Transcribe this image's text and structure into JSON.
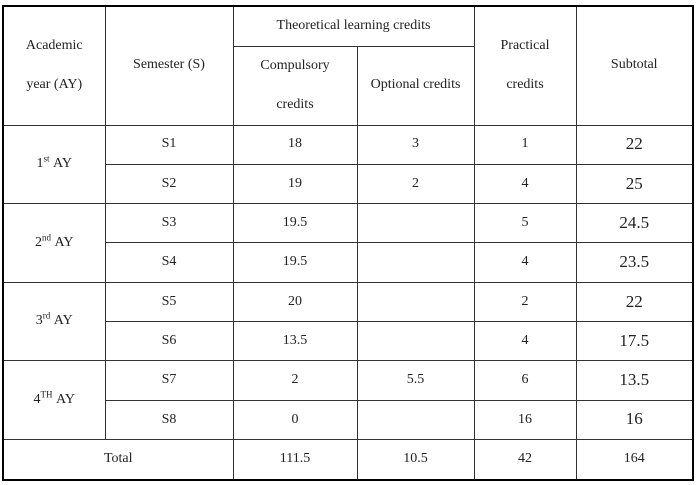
{
  "headers": {
    "academic_year_line1": "Academic",
    "academic_year_line2": "year (AY)",
    "semester": "Semester (S)",
    "theoretical": "Theoretical learning credits",
    "compulsory_line1": "Compulsory",
    "compulsory_line2": "credits",
    "optional": "Optional credits",
    "practical_line1": "Practical",
    "practical_line2": "credits",
    "subtotal": "Subtotal"
  },
  "years": [
    {
      "num": "1",
      "sup": "st",
      "suffix": "AY"
    },
    {
      "num": "2",
      "sup": "nd",
      "suffix": "AY"
    },
    {
      "num": "3",
      "sup": "rd",
      "suffix": "AY"
    },
    {
      "num": "4",
      "sup": "TH",
      "suffix": "AY"
    }
  ],
  "rows": [
    {
      "semester": "S1",
      "compulsory": "18",
      "optional": "3",
      "practical": "1",
      "subtotal": "22"
    },
    {
      "semester": "S2",
      "compulsory": "19",
      "optional": "2",
      "practical": "4",
      "subtotal": "25"
    },
    {
      "semester": "S3",
      "compulsory": "19.5",
      "optional": "",
      "practical": "5",
      "subtotal": "24.5"
    },
    {
      "semester": "S4",
      "compulsory": "19.5",
      "optional": "",
      "practical": "4",
      "subtotal": "23.5"
    },
    {
      "semester": "S5",
      "compulsory": "20",
      "optional": "",
      "practical": "2",
      "subtotal": "22"
    },
    {
      "semester": "S6",
      "compulsory": "13.5",
      "optional": "",
      "practical": "4",
      "subtotal": "17.5"
    },
    {
      "semester": "S7",
      "compulsory": "2",
      "optional": "5.5",
      "practical": "6",
      "subtotal": "13.5"
    },
    {
      "semester": "S8",
      "compulsory": "0",
      "optional": "",
      "practical": "16",
      "subtotal": "16"
    }
  ],
  "total": {
    "label": "Total",
    "compulsory": "111.5",
    "optional": "10.5",
    "practical": "42",
    "subtotal": "164"
  }
}
